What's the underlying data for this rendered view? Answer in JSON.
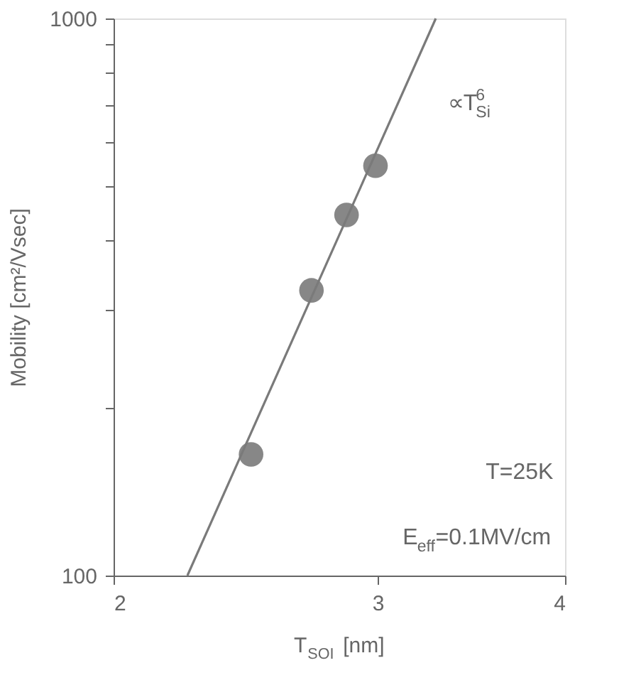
{
  "chart_data": {
    "type": "scatter",
    "xlabel": "T$_{SOI}$ [nm]",
    "ylabel": "Mobility [cm²/Vsec]",
    "log": "xy",
    "xlim": [
      2,
      4
    ],
    "ylim": [
      100,
      1000
    ],
    "xticks": [
      2,
      3,
      4
    ],
    "yticks": [
      100,
      {
        "value": 200,
        "label": null
      },
      {
        "value": 300,
        "label": null
      },
      {
        "value": 400,
        "label": null
      },
      {
        "value": 500,
        "label": null
      },
      {
        "value": 600,
        "label": null
      },
      {
        "value": 700,
        "label": null
      },
      {
        "value": 800,
        "label": null
      },
      {
        "value": 900,
        "label": null
      },
      1000
    ],
    "grid": false,
    "series": [
      {
        "color": "#878787",
        "marker": "circle",
        "x": [
          2.47,
          2.71,
          2.86,
          2.99
        ],
        "values": [
          165,
          325,
          444,
          544
        ]
      },
      {
        "type": "line",
        "marker": "none",
        "color": "#7a7a7a",
        "x": [
          2.24,
          3.28
        ],
        "values": [
          100,
          1000
        ]
      }
    ],
    "annotations": [
      "∝T$_{Si}$$^{6}$",
      "T=25K",
      "E$_{eff}$=0.1MV/cm"
    ]
  }
}
